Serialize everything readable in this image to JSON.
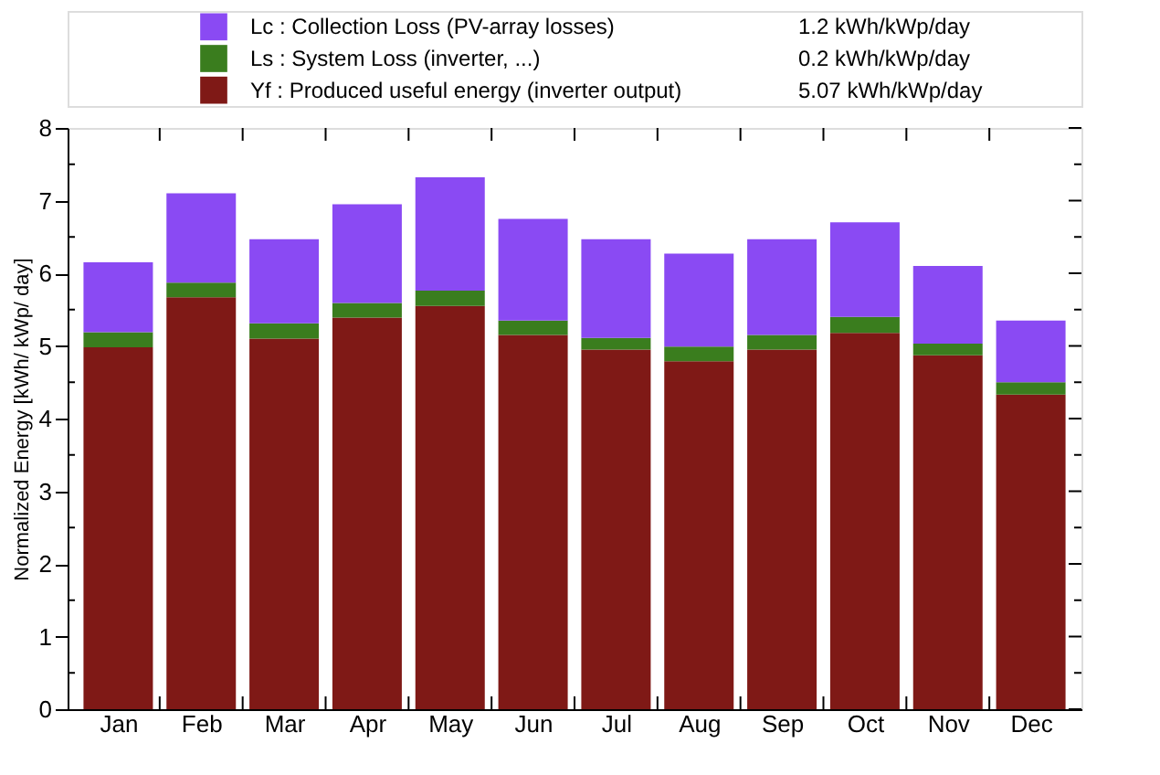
{
  "chart_data": {
    "type": "bar",
    "stacked": true,
    "ylabel": "Normalized Energy  [kWh/ kWp/ day]",
    "categories": [
      "Jan",
      "Feb",
      "Mar",
      "Apr",
      "May",
      "Jun",
      "Jul",
      "Aug",
      "Sep",
      "Oct",
      "Nov",
      "Dec"
    ],
    "series": [
      {
        "name": "Yf : Produced useful energy (inverter output)",
        "color": "#7f1916",
        "values": [
          4.98,
          5.67,
          5.1,
          5.39,
          5.55,
          5.15,
          4.95,
          4.79,
          4.95,
          5.18,
          4.87,
          4.33
        ]
      },
      {
        "name": "Ls : System Loss (inverter, ...)",
        "color": "#3a7d1e",
        "values": [
          0.21,
          0.2,
          0.21,
          0.2,
          0.21,
          0.2,
          0.16,
          0.2,
          0.2,
          0.22,
          0.16,
          0.17
        ]
      },
      {
        "name": "Lc : Collection Loss (PV-array losses)",
        "color": "#8a4af3",
        "values": [
          0.96,
          1.23,
          1.16,
          1.36,
          1.56,
          1.4,
          1.36,
          1.28,
          1.32,
          1.3,
          1.07,
          0.85
        ]
      }
    ],
    "annotations": [
      "5.07 kWh/kWp/day",
      "0.2 kWh/kWp/day",
      "1.2 kWh/kWp/day"
    ],
    "ylim": [
      0,
      8
    ],
    "yticks": [
      0,
      1,
      2,
      3,
      4,
      5,
      6,
      7,
      8
    ],
    "grid": false,
    "legend": "top"
  }
}
